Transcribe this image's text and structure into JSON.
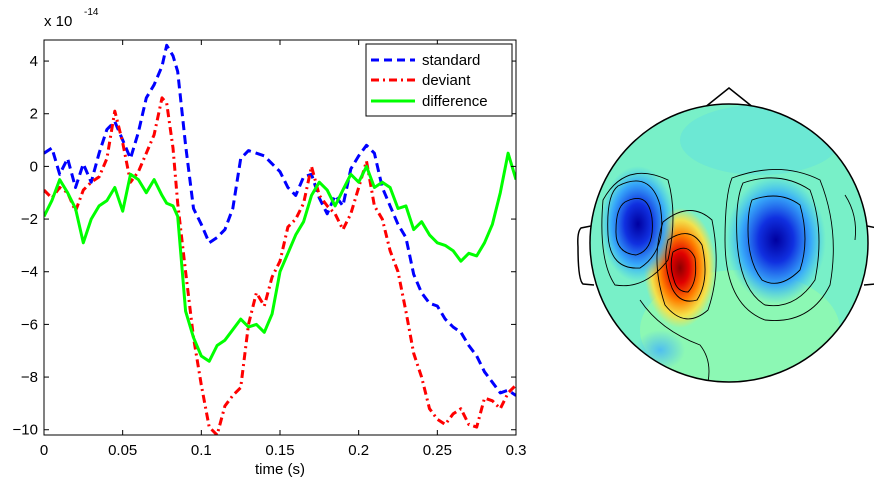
{
  "chart_data": [
    {
      "type": "line",
      "title": "",
      "xlabel": "time (s)",
      "ylabel": "",
      "y_multiplier_label": {
        "base": "x 10",
        "exponent": "-14"
      },
      "xlim": [
        0,
        0.3
      ],
      "ylim": [
        -10.2,
        4.8
      ],
      "x_ticks": [
        0,
        0.05,
        0.1,
        0.15,
        0.2,
        0.25,
        0.3
      ],
      "x_tick_labels": [
        "0",
        "0.05",
        "0.1",
        "0.15",
        "0.2",
        "0.25",
        "0.3"
      ],
      "y_ticks": [
        -10,
        -8,
        -6,
        -4,
        -2,
        0,
        2,
        4
      ],
      "y_tick_labels": [
        "−10",
        "−8",
        "−6",
        "−4",
        "−2",
        "0",
        "2",
        "4"
      ],
      "grid": false,
      "legend": "top-right",
      "series": [
        {
          "name": "standard",
          "color": "#0000ff",
          "style": "dashed",
          "x": [
            0,
            0.005,
            0.01,
            0.015,
            0.02,
            0.025,
            0.03,
            0.035,
            0.04,
            0.045,
            0.05,
            0.055,
            0.06,
            0.065,
            0.07,
            0.075,
            0.078,
            0.082,
            0.085,
            0.09,
            0.095,
            0.1,
            0.105,
            0.11,
            0.115,
            0.12,
            0.125,
            0.13,
            0.135,
            0.14,
            0.145,
            0.15,
            0.155,
            0.16,
            0.165,
            0.17,
            0.175,
            0.18,
            0.185,
            0.19,
            0.195,
            0.2,
            0.205,
            0.21,
            0.215,
            0.22,
            0.225,
            0.23,
            0.235,
            0.24,
            0.245,
            0.25,
            0.255,
            0.26,
            0.265,
            0.27,
            0.275,
            0.28,
            0.285,
            0.29,
            0.295,
            0.3
          ],
          "y": [
            0.5,
            0.7,
            -0.3,
            0.3,
            -0.8,
            0.1,
            -0.6,
            0.5,
            1.4,
            1.7,
            1.0,
            0.3,
            1.3,
            2.6,
            3.1,
            3.8,
            4.6,
            4.2,
            3.6,
            0.8,
            -1.6,
            -2.2,
            -2.9,
            -2.7,
            -2.4,
            -1.6,
            0.3,
            0.6,
            0.5,
            0.4,
            0.1,
            -0.2,
            -0.8,
            -1.1,
            -0.4,
            -0.3,
            -1.2,
            -1.8,
            -1.1,
            -1.5,
            -0.1,
            0.4,
            0.8,
            0.5,
            -0.8,
            -1.5,
            -2.2,
            -2.7,
            -4.1,
            -4.8,
            -5.2,
            -5.3,
            -5.8,
            -6.1,
            -6.3,
            -6.8,
            -7.2,
            -7.8,
            -8.2,
            -8.6,
            -8.5,
            -8.7
          ]
        },
        {
          "name": "deviant",
          "color": "#ff0000",
          "style": "dashdot",
          "x": [
            0,
            0.005,
            0.01,
            0.015,
            0.02,
            0.025,
            0.03,
            0.035,
            0.04,
            0.045,
            0.05,
            0.055,
            0.06,
            0.065,
            0.07,
            0.075,
            0.078,
            0.082,
            0.085,
            0.09,
            0.095,
            0.1,
            0.105,
            0.11,
            0.115,
            0.12,
            0.125,
            0.13,
            0.135,
            0.14,
            0.145,
            0.15,
            0.155,
            0.16,
            0.165,
            0.17,
            0.175,
            0.18,
            0.185,
            0.19,
            0.195,
            0.2,
            0.205,
            0.21,
            0.215,
            0.22,
            0.225,
            0.23,
            0.235,
            0.24,
            0.245,
            0.25,
            0.255,
            0.26,
            0.265,
            0.27,
            0.275,
            0.28,
            0.285,
            0.29,
            0.295,
            0.3
          ],
          "y": [
            -0.9,
            -1.2,
            -0.8,
            -1.0,
            -1.7,
            -0.9,
            -0.6,
            -0.4,
            0.3,
            2.1,
            0.9,
            -0.6,
            -0.2,
            0.5,
            1.2,
            2.6,
            2.4,
            0.7,
            -1.4,
            -4.0,
            -6.5,
            -8.3,
            -9.9,
            -10.2,
            -9.1,
            -8.7,
            -8.4,
            -6.0,
            -4.8,
            -5.3,
            -4.2,
            -3.6,
            -2.3,
            -2.0,
            -1.4,
            0.0,
            -1.1,
            -1.5,
            -1.8,
            -2.4,
            -1.8,
            -0.8,
            0.2,
            -1.5,
            -2.0,
            -3.2,
            -4.0,
            -5.5,
            -7.1,
            -8.0,
            -9.2,
            -9.6,
            -9.8,
            -9.4,
            -9.2,
            -9.8,
            -9.9,
            -8.8,
            -8.9,
            -9.2,
            -8.6,
            -8.3
          ]
        },
        {
          "name": "difference",
          "color": "#00ff00",
          "style": "solid",
          "x": [
            0,
            0.005,
            0.01,
            0.015,
            0.02,
            0.025,
            0.03,
            0.035,
            0.04,
            0.045,
            0.05,
            0.055,
            0.06,
            0.065,
            0.07,
            0.075,
            0.078,
            0.082,
            0.085,
            0.09,
            0.095,
            0.1,
            0.105,
            0.11,
            0.115,
            0.12,
            0.125,
            0.13,
            0.135,
            0.14,
            0.145,
            0.15,
            0.155,
            0.16,
            0.165,
            0.17,
            0.175,
            0.18,
            0.185,
            0.19,
            0.195,
            0.2,
            0.205,
            0.21,
            0.215,
            0.22,
            0.225,
            0.23,
            0.235,
            0.24,
            0.245,
            0.25,
            0.255,
            0.26,
            0.265,
            0.27,
            0.275,
            0.28,
            0.285,
            0.29,
            0.295,
            0.3
          ],
          "y": [
            -1.9,
            -1.3,
            -0.5,
            -1.0,
            -1.6,
            -2.9,
            -2.0,
            -1.5,
            -1.3,
            -0.8,
            -1.7,
            -0.3,
            -0.5,
            -1.0,
            -0.5,
            -1.1,
            -1.4,
            -1.5,
            -1.9,
            -5.5,
            -6.5,
            -7.2,
            -7.4,
            -6.8,
            -6.6,
            -6.2,
            -5.8,
            -6.1,
            -6.0,
            -6.3,
            -5.6,
            -4.0,
            -3.3,
            -2.6,
            -2.1,
            -1.1,
            -0.6,
            -0.9,
            -1.5,
            -0.9,
            -0.3,
            -0.6,
            0.0,
            -0.8,
            -0.6,
            -0.8,
            -1.6,
            -1.5,
            -2.4,
            -2.1,
            -2.6,
            -2.9,
            -3.0,
            -3.2,
            -3.6,
            -3.3,
            -3.4,
            -2.9,
            -2.2,
            -1.0,
            0.5,
            -0.5
          ]
        }
      ]
    }
  ],
  "topo_colors": {
    "min": "#00008f",
    "mid": "#80ffa0",
    "max": "#800000",
    "outline": "#000000"
  }
}
